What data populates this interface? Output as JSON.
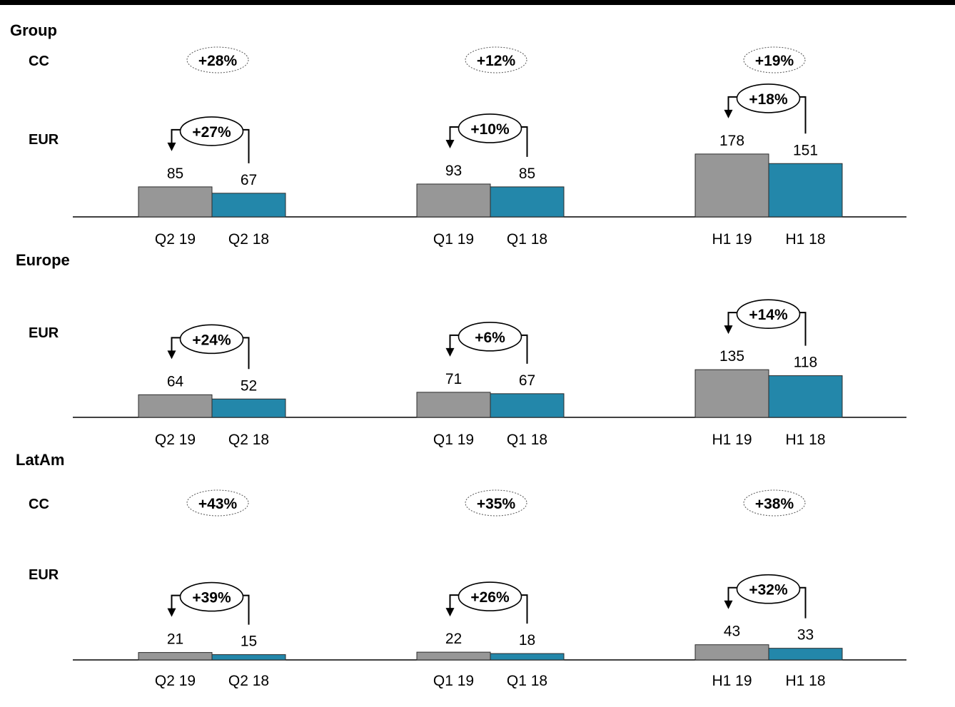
{
  "colors": {
    "current_bar": "#979797",
    "prior_bar": "#2387aa",
    "axis": "#000000",
    "top_rule": "#000000"
  },
  "chart_data": [
    {
      "type": "bar",
      "section": "Group",
      "cc_label": "CC",
      "eur_label": "EUR",
      "groups": [
        {
          "categories": [
            "Q2 19",
            "Q2 18"
          ],
          "values": [
            85,
            67
          ],
          "eur_change": "+27%",
          "cc_change": "+28%"
        },
        {
          "categories": [
            "Q1 19",
            "Q1 18"
          ],
          "values": [
            93,
            85
          ],
          "eur_change": "+10%",
          "cc_change": "+12%"
        },
        {
          "categories": [
            "H1 19",
            "H1 18"
          ],
          "values": [
            178,
            151
          ],
          "eur_change": "+18%",
          "cc_change": "+19%"
        }
      ]
    },
    {
      "type": "bar",
      "section": "Europe",
      "cc_label": "",
      "eur_label": "EUR",
      "groups": [
        {
          "categories": [
            "Q2 19",
            "Q2 18"
          ],
          "values": [
            64,
            52
          ],
          "eur_change": "+24%",
          "cc_change": ""
        },
        {
          "categories": [
            "Q1 19",
            "Q1 18"
          ],
          "values": [
            71,
            67
          ],
          "eur_change": "+6%",
          "cc_change": ""
        },
        {
          "categories": [
            "H1 19",
            "H1 18"
          ],
          "values": [
            135,
            118
          ],
          "eur_change": "+14%",
          "cc_change": ""
        }
      ]
    },
    {
      "type": "bar",
      "section": "LatAm",
      "cc_label": "CC",
      "eur_label": "EUR",
      "groups": [
        {
          "categories": [
            "Q2 19",
            "Q2 18"
          ],
          "values": [
            21,
            15
          ],
          "eur_change": "+39%",
          "cc_change": "+43%"
        },
        {
          "categories": [
            "Q1 19",
            "Q1 18"
          ],
          "values": [
            22,
            18
          ],
          "eur_change": "+26%",
          "cc_change": "+35%"
        },
        {
          "categories": [
            "H1 19",
            "H1 18"
          ],
          "values": [
            43,
            33
          ],
          "eur_change": "+32%",
          "cc_change": "+38%"
        }
      ]
    }
  ]
}
